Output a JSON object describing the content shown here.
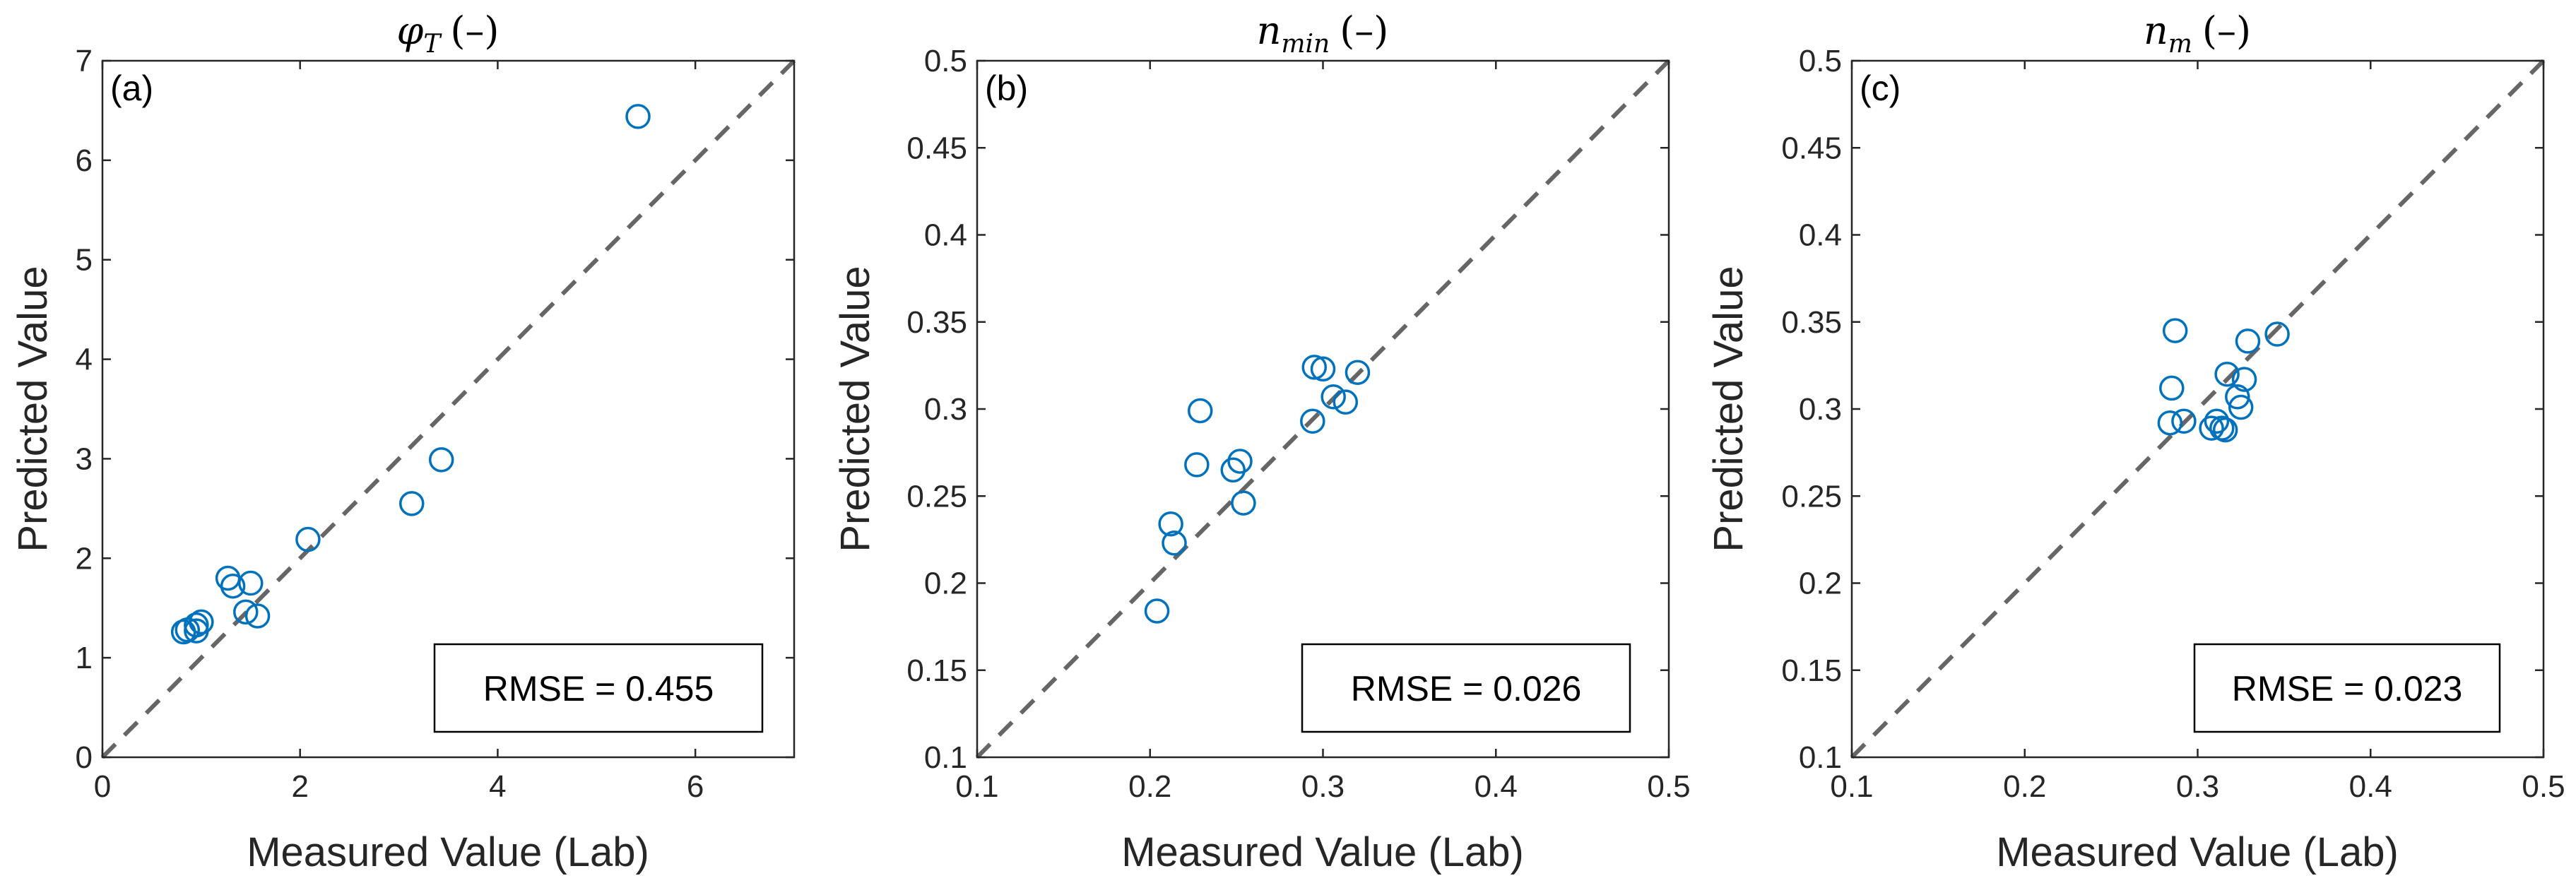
{
  "colors": {
    "marker": "#0072BD",
    "reference_line": "#666666",
    "axes": "#262626"
  },
  "chart_data": [
    {
      "type": "scatter",
      "panel_label": "(a)",
      "title_main": "φ",
      "title_sub": "T",
      "title_unit": "(–)",
      "xlabel": "Measured Value (Lab)",
      "ylabel": "Predicted Value",
      "xlim": [
        0,
        7
      ],
      "ylim": [
        0,
        7
      ],
      "xticks": [
        0,
        2,
        4,
        6
      ],
      "xtick_labels": [
        "0",
        "2",
        "4",
        "6"
      ],
      "yticks": [
        0,
        1,
        2,
        3,
        4,
        5,
        6,
        7
      ],
      "ytick_labels": [
        "0",
        "1",
        "2",
        "3",
        "4",
        "5",
        "6",
        "7"
      ],
      "rmse_text": "RMSE = 0.455",
      "reference_line": "y = x",
      "x": [
        0.82,
        0.86,
        0.95,
        1.0,
        0.95,
        1.27,
        1.32,
        1.5,
        1.45,
        1.57,
        2.08,
        3.13,
        3.43,
        5.42
      ],
      "y": [
        1.26,
        1.28,
        1.33,
        1.36,
        1.27,
        1.8,
        1.72,
        1.75,
        1.46,
        1.42,
        2.19,
        2.55,
        2.99,
        6.44
      ]
    },
    {
      "type": "scatter",
      "panel_label": "(b)",
      "title_main": "n",
      "title_sub": "min",
      "title_unit": "(–)",
      "xlabel": "Measured Value (Lab)",
      "ylabel": "Predicted Value",
      "xlim": [
        0.1,
        0.5
      ],
      "ylim": [
        0.1,
        0.5
      ],
      "xticks": [
        0.1,
        0.2,
        0.3,
        0.4,
        0.5
      ],
      "xtick_labels": [
        "0.1",
        "0.2",
        "0.3",
        "0.4",
        "0.5"
      ],
      "yticks": [
        0.1,
        0.15,
        0.2,
        0.25,
        0.3,
        0.35,
        0.4,
        0.45,
        0.5
      ],
      "ytick_labels": [
        "0.1",
        "0.15",
        "0.2",
        "0.25",
        "0.3",
        "0.35",
        "0.4",
        "0.45",
        "0.5"
      ],
      "rmse_text": "RMSE = 0.026",
      "reference_line": "y = x",
      "x": [
        0.204,
        0.212,
        0.214,
        0.227,
        0.229,
        0.248,
        0.252,
        0.254,
        0.295,
        0.294,
        0.3,
        0.306,
        0.313,
        0.32
      ],
      "y": [
        0.184,
        0.234,
        0.223,
        0.268,
        0.299,
        0.265,
        0.27,
        0.246,
        0.324,
        0.293,
        0.323,
        0.307,
        0.304,
        0.321
      ]
    },
    {
      "type": "scatter",
      "panel_label": "(c)",
      "title_main": "n",
      "title_sub": "m",
      "title_unit": "(–)",
      "xlabel": "Measured Value (Lab)",
      "ylabel": "Predicted Value",
      "xlim": [
        0.1,
        0.5
      ],
      "ylim": [
        0.1,
        0.5
      ],
      "xticks": [
        0.1,
        0.2,
        0.3,
        0.4,
        0.5
      ],
      "xtick_labels": [
        "0.1",
        "0.2",
        "0.3",
        "0.4",
        "0.5"
      ],
      "yticks": [
        0.1,
        0.15,
        0.2,
        0.25,
        0.3,
        0.35,
        0.4,
        0.45,
        0.5
      ],
      "ytick_labels": [
        "0.1",
        "0.15",
        "0.2",
        "0.25",
        "0.3",
        "0.35",
        "0.4",
        "0.45",
        "0.5"
      ],
      "rmse_text": "RMSE = 0.023",
      "reference_line": "y = x",
      "x": [
        0.284,
        0.285,
        0.287,
        0.292,
        0.308,
        0.311,
        0.314,
        0.316,
        0.317,
        0.323,
        0.325,
        0.327,
        0.329,
        0.346
      ],
      "y": [
        0.292,
        0.312,
        0.345,
        0.293,
        0.289,
        0.293,
        0.289,
        0.288,
        0.32,
        0.307,
        0.301,
        0.317,
        0.339,
        0.343
      ]
    }
  ]
}
